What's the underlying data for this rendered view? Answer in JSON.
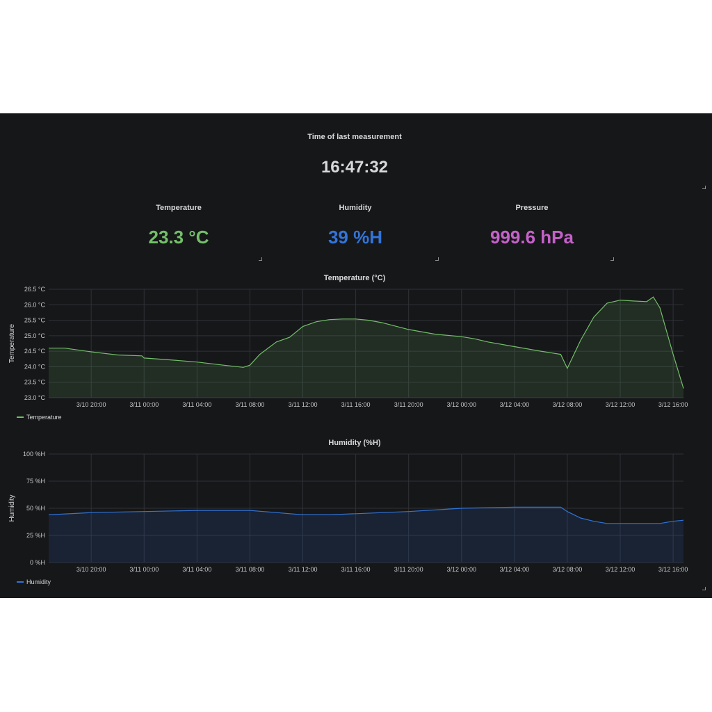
{
  "last_measurement": {
    "title": "Time of last measurement",
    "value": "16:47:32"
  },
  "stats": [
    {
      "title": "Temperature",
      "value": "23.3 °C",
      "color": "#73bf69"
    },
    {
      "title": "Humidity",
      "value": "39 %H",
      "color": "#3274d9"
    },
    {
      "title": "Pressure",
      "value": "999.6 hPa",
      "color": "#c561c9"
    }
  ],
  "chart_data": [
    {
      "type": "area",
      "title": "Temperature (°C)",
      "ylabel": "Temperature",
      "xlabel": "",
      "ylim": [
        23.0,
        26.5
      ],
      "xlim": [
        "3/10 16:47",
        "3/12 16:47"
      ],
      "y_ticks": [
        "23.0 °C",
        "23.5 °C",
        "24.0 °C",
        "24.5 °C",
        "25.0 °C",
        "25.5 °C",
        "26.0 °C",
        "26.5 °C"
      ],
      "x_ticks": [
        "3/10 20:00",
        "3/11 00:00",
        "3/11 04:00",
        "3/11 08:00",
        "3/11 12:00",
        "3/11 16:00",
        "3/11 20:00",
        "3/12 00:00",
        "3/12 04:00",
        "3/12 08:00",
        "3/12 12:00",
        "3/12 16:00"
      ],
      "color": "#73bf69",
      "grid": true,
      "legend_position": "bottom-left",
      "series": [
        {
          "name": "Temperature",
          "x": [
            "3/10 16:47",
            "3/10 18:00",
            "3/10 20:00",
            "3/10 22:00",
            "3/10 23:50",
            "3/11 00:00",
            "3/11 02:00",
            "3/11 04:00",
            "3/11 06:00",
            "3/11 07:30",
            "3/11 08:00",
            "3/11 08:45",
            "3/11 10:00",
            "3/11 11:00",
            "3/11 12:00",
            "3/11 13:00",
            "3/11 14:00",
            "3/11 15:00",
            "3/11 16:00",
            "3/11 17:00",
            "3/11 18:00",
            "3/11 20:00",
            "3/11 22:00",
            "3/12 00:00",
            "3/12 01:00",
            "3/12 02:00",
            "3/12 04:00",
            "3/12 06:00",
            "3/12 07:30",
            "3/12 08:00",
            "3/12 09:00",
            "3/12 10:00",
            "3/12 11:00",
            "3/12 12:00",
            "3/12 13:00",
            "3/12 14:00",
            "3/12 14:30",
            "3/12 15:00",
            "3/12 16:00",
            "3/12 16:47"
          ],
          "y": [
            24.6,
            24.6,
            24.48,
            24.38,
            24.35,
            24.28,
            24.22,
            24.15,
            24.05,
            23.98,
            24.05,
            24.4,
            24.8,
            24.95,
            25.3,
            25.45,
            25.52,
            25.54,
            25.54,
            25.5,
            25.42,
            25.2,
            25.05,
            24.97,
            24.9,
            24.8,
            24.65,
            24.5,
            24.4,
            23.95,
            24.85,
            25.6,
            26.05,
            26.15,
            26.12,
            26.1,
            26.25,
            25.9,
            24.4,
            23.3
          ]
        }
      ]
    },
    {
      "type": "area",
      "title": "Humidity (%H)",
      "ylabel": "Humidity",
      "xlabel": "",
      "ylim": [
        0,
        100
      ],
      "xlim": [
        "3/10 16:47",
        "3/12 16:47"
      ],
      "y_ticks": [
        "0 %H",
        "25 %H",
        "50 %H",
        "75 %H",
        "100 %H"
      ],
      "x_ticks": [
        "3/10 20:00",
        "3/11 00:00",
        "3/11 04:00",
        "3/11 08:00",
        "3/11 12:00",
        "3/11 16:00",
        "3/11 20:00",
        "3/12 00:00",
        "3/12 04:00",
        "3/12 08:00",
        "3/12 12:00",
        "3/12 16:00"
      ],
      "color": "#3274d9",
      "grid": true,
      "legend_position": "bottom-left",
      "series": [
        {
          "name": "Humidity",
          "x": [
            "3/10 16:47",
            "3/10 20:00",
            "3/11 00:00",
            "3/11 04:00",
            "3/11 08:00",
            "3/11 10:00",
            "3/11 12:00",
            "3/11 14:00",
            "3/11 16:00",
            "3/11 20:00",
            "3/12 00:00",
            "3/12 04:00",
            "3/12 07:30",
            "3/12 08:00",
            "3/12 09:00",
            "3/12 10:00",
            "3/12 11:00",
            "3/12 12:00",
            "3/12 13:00",
            "3/12 14:00",
            "3/12 15:00",
            "3/12 16:00",
            "3/12 16:47"
          ],
          "y": [
            44,
            46,
            47,
            48,
            48,
            46,
            44,
            44,
            45,
            47,
            50,
            51,
            51,
            47,
            41,
            38,
            36,
            36,
            36,
            36,
            36,
            38,
            39
          ]
        }
      ]
    }
  ]
}
